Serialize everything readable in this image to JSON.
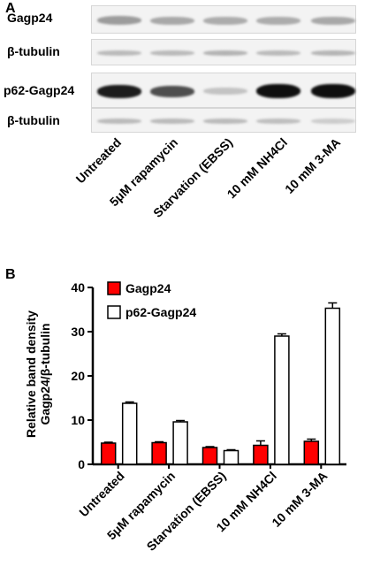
{
  "panel_a": {
    "letter": "A",
    "rows": [
      {
        "label": "Gagp24",
        "kind": "main",
        "intensities": [
          0.35,
          0.3,
          0.28,
          0.28,
          0.3
        ]
      },
      {
        "label": "β-tubulin",
        "kind": "loading",
        "intensities": [
          0.22,
          0.22,
          0.25,
          0.22,
          0.24
        ]
      },
      {
        "label": "p62-Gagp24",
        "kind": "main",
        "intensities": [
          0.92,
          0.7,
          0.18,
          0.98,
          0.98
        ]
      },
      {
        "label": "β-tubulin",
        "kind": "loading",
        "intensities": [
          0.22,
          0.22,
          0.22,
          0.2,
          0.14
        ]
      }
    ],
    "lanes": [
      "Untreated",
      "5μM rapamycin",
      "Starvation (EBSS)",
      "10 mM NH4Cl",
      "10 mM 3-MA"
    ]
  },
  "panel_b": {
    "letter": "B",
    "ylabel_line1": "Relative band density",
    "ylabel_line2": "Gagp24/β-tubulin"
  },
  "chart_data": {
    "type": "bar",
    "categories": [
      "Untreated",
      "5μM rapamycin",
      "Starvation (EBSS)",
      "10 mM NH4Cl",
      "10 mM 3-MA"
    ],
    "series": [
      {
        "name": "Gagp24",
        "color": "#ff0000",
        "values": [
          4.8,
          4.9,
          3.8,
          4.3,
          5.2
        ],
        "errors": [
          0.2,
          0.2,
          0.2,
          1.0,
          0.5
        ]
      },
      {
        "name": "p62-Gagp24",
        "color": "#ffffff",
        "values": [
          13.8,
          9.6,
          3.1,
          29.0,
          35.3
        ],
        "errors": [
          0.3,
          0.3,
          0.2,
          0.5,
          1.2
        ]
      }
    ],
    "ylim": [
      0,
      40
    ],
    "yticks": [
      "0",
      "10",
      "20",
      "30",
      "40"
    ],
    "legend_position": "top-left",
    "grid": false
  }
}
